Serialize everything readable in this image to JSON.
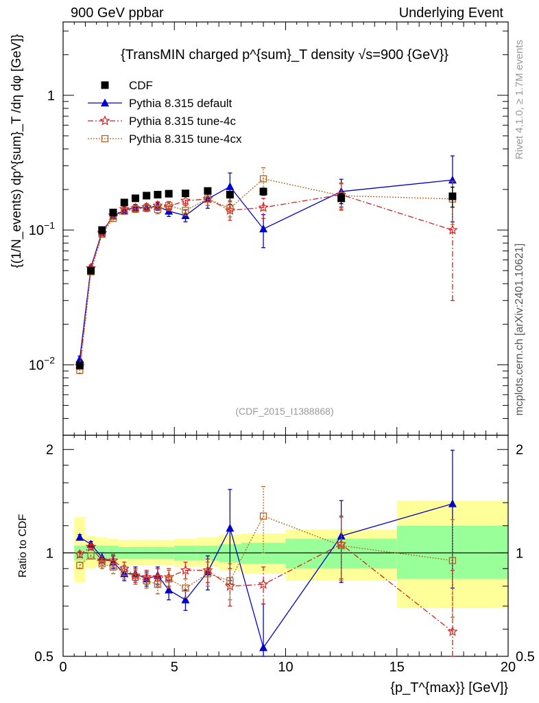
{
  "header": {
    "left": "900 GeV ppbar",
    "right": "Underlying Event"
  },
  "side_text": {
    "rivet": "Rivet 4.1.0, ≥ 1.7M events",
    "mcplots": "mcplots.cern.ch [arXiv:2401.10621]"
  },
  "chart_data": [
    {
      "type": "scatter",
      "panel": "main",
      "title": "{TransMIN charged p^{sum}_T density √s=900 {GeV}}",
      "watermark": "(CDF_2015_I1388868)",
      "ylabel": "{(1/N_events) dp^{sum}_T /dη  dφ [GeV]}",
      "yscale": "log",
      "xlim": [
        0,
        20
      ],
      "ylim": [
        0.003,
        3.5
      ],
      "yticks": [
        {
          "v": 0.01,
          "base": "10",
          "exp": "−2"
        },
        {
          "v": 0.1,
          "base": "10",
          "exp": "−1"
        },
        {
          "v": 1,
          "base": "1",
          "exp": ""
        }
      ],
      "legend": [
        {
          "label": "CDF",
          "color": "#000000",
          "marker": "square"
        },
        {
          "label": "Pythia 8.315 default",
          "color": "#0000cc",
          "marker": "triangle"
        },
        {
          "label": "Pythia 8.315 tune-4c",
          "color": "#d62020",
          "marker": "star"
        },
        {
          "label": "Pythia 8.315 tune-4cx",
          "color": "#b5601c",
          "marker": "opensquare"
        }
      ],
      "series": [
        {
          "name": "CDF",
          "x": [
            0.75,
            1.25,
            1.75,
            2.25,
            2.75,
            3.25,
            3.75,
            4.25,
            4.75,
            5.5,
            6.5,
            7.5,
            9.0,
            12.5,
            17.5
          ],
          "y": [
            0.0099,
            0.05,
            0.1,
            0.135,
            0.16,
            0.172,
            0.18,
            0.183,
            0.186,
            0.187,
            0.195,
            0.183,
            0.193,
            0.172,
            0.178
          ],
          "err": [
            0.0004,
            0.0015,
            0.003,
            0.004,
            0.004,
            0.005,
            0.005,
            0.006,
            0.006,
            0.007,
            0.008,
            0.009,
            0.012,
            0.015,
            0.03
          ]
        },
        {
          "name": "Pythia 8.315 default",
          "x": [
            0.75,
            1.25,
            1.75,
            2.25,
            2.75,
            3.25,
            3.75,
            4.25,
            4.75,
            5.5,
            6.5,
            7.5,
            9.0,
            12.5,
            17.5
          ],
          "y": [
            0.011,
            0.053,
            0.097,
            0.127,
            0.14,
            0.147,
            0.146,
            0.15,
            0.138,
            0.128,
            0.17,
            0.21,
            0.102,
            0.193,
            0.235
          ],
          "err": [
            0.0006,
            0.002,
            0.004,
            0.006,
            0.007,
            0.008,
            0.009,
            0.01,
            0.012,
            0.013,
            0.025,
            0.055,
            0.028,
            0.045,
            0.12
          ]
        },
        {
          "name": "Pythia 8.315 tune-4c",
          "x": [
            0.75,
            1.25,
            1.75,
            2.25,
            2.75,
            3.25,
            3.75,
            4.25,
            4.75,
            5.5,
            6.5,
            7.5,
            9.0,
            12.5,
            17.5
          ],
          "y": [
            0.0098,
            0.052,
            0.095,
            0.128,
            0.143,
            0.145,
            0.148,
            0.152,
            0.15,
            0.165,
            0.17,
            0.14,
            0.147,
            0.183,
            0.1
          ],
          "err": [
            0.0005,
            0.002,
            0.004,
            0.006,
            0.007,
            0.008,
            0.009,
            0.01,
            0.011,
            0.012,
            0.018,
            0.022,
            0.025,
            0.04,
            0.07
          ]
        },
        {
          "name": "Pythia 8.315 tune-4cx",
          "x": [
            0.75,
            1.25,
            1.75,
            2.25,
            2.75,
            3.25,
            3.75,
            4.25,
            4.75,
            5.5,
            6.5,
            7.5,
            9.0,
            12.5,
            17.5
          ],
          "y": [
            0.0091,
            0.049,
            0.093,
            0.122,
            0.138,
            0.143,
            0.146,
            0.142,
            0.152,
            0.14,
            0.17,
            0.145,
            0.24,
            0.18,
            0.17
          ],
          "err": [
            0.0005,
            0.002,
            0.004,
            0.006,
            0.007,
            0.008,
            0.009,
            0.01,
            0.011,
            0.012,
            0.018,
            0.02,
            0.05,
            0.04,
            0.06
          ]
        }
      ]
    },
    {
      "type": "scatter",
      "panel": "ratio",
      "ylabel": "Ratio to CDF",
      "xlabel": "{p_T^{max}} [GeV]}",
      "xlim": [
        0,
        20
      ],
      "ylim": [
        0.5,
        2.2
      ],
      "yscale": "log",
      "xticks": [
        0,
        5,
        10,
        15,
        20
      ],
      "yticks": [
        0.5,
        1,
        2
      ],
      "bands": [
        {
          "x0": 0.5,
          "x1": 1.0,
          "green": [
            0.95,
            1.05
          ],
          "yellow": [
            0.82,
            1.27
          ]
        },
        {
          "x0": 1.0,
          "x1": 1.5,
          "green": [
            0.96,
            1.06
          ],
          "yellow": [
            0.9,
            1.12
          ]
        },
        {
          "x0": 1.5,
          "x1": 2.0,
          "green": [
            0.96,
            1.05
          ],
          "yellow": [
            0.92,
            1.11
          ]
        },
        {
          "x0": 2.0,
          "x1": 2.5,
          "green": [
            0.96,
            1.05
          ],
          "yellow": [
            0.92,
            1.1
          ]
        },
        {
          "x0": 2.5,
          "x1": 3.0,
          "green": [
            0.96,
            1.04
          ],
          "yellow": [
            0.92,
            1.09
          ]
        },
        {
          "x0": 3.0,
          "x1": 3.5,
          "green": [
            0.96,
            1.04
          ],
          "yellow": [
            0.92,
            1.09
          ]
        },
        {
          "x0": 3.5,
          "x1": 4.0,
          "green": [
            0.96,
            1.04
          ],
          "yellow": [
            0.92,
            1.09
          ]
        },
        {
          "x0": 4.0,
          "x1": 4.5,
          "green": [
            0.96,
            1.04
          ],
          "yellow": [
            0.92,
            1.09
          ]
        },
        {
          "x0": 4.5,
          "x1": 5.0,
          "green": [
            0.96,
            1.04
          ],
          "yellow": [
            0.92,
            1.09
          ]
        },
        {
          "x0": 5.0,
          "x1": 6.0,
          "green": [
            0.95,
            1.05
          ],
          "yellow": [
            0.91,
            1.1
          ]
        },
        {
          "x0": 6.0,
          "x1": 7.0,
          "green": [
            0.95,
            1.05
          ],
          "yellow": [
            0.91,
            1.11
          ]
        },
        {
          "x0": 7.0,
          "x1": 8.0,
          "green": [
            0.94,
            1.06
          ],
          "yellow": [
            0.89,
            1.13
          ]
        },
        {
          "x0": 8.0,
          "x1": 10.0,
          "green": [
            0.93,
            1.07
          ],
          "yellow": [
            0.87,
            1.14
          ]
        },
        {
          "x0": 10.0,
          "x1": 15.0,
          "green": [
            0.9,
            1.1
          ],
          "yellow": [
            0.83,
            1.17
          ]
        },
        {
          "x0": 15.0,
          "x1": 20.0,
          "green": [
            0.84,
            1.2
          ],
          "yellow": [
            0.69,
            1.42
          ]
        }
      ],
      "series": [
        {
          "name": "Pythia 8.315 default",
          "x": [
            0.75,
            1.25,
            1.75,
            2.25,
            2.75,
            3.25,
            3.75,
            4.25,
            4.75,
            5.5,
            6.5,
            7.5,
            9.0,
            12.5,
            17.5
          ],
          "y": [
            1.11,
            1.06,
            0.97,
            0.94,
            0.87,
            0.87,
            0.84,
            0.86,
            0.78,
            0.73,
            0.88,
            1.18,
            0.53,
            1.12,
            1.39
          ],
          "err": [
            0.02,
            0.02,
            0.03,
            0.04,
            0.04,
            0.04,
            0.04,
            0.05,
            0.05,
            0.05,
            0.1,
            0.35,
            0.18,
            0.3,
            0.6
          ]
        },
        {
          "name": "Pythia 8.315 tune-4c",
          "x": [
            0.75,
            1.25,
            1.75,
            2.25,
            2.75,
            3.25,
            3.75,
            4.25,
            4.75,
            5.5,
            6.5,
            7.5,
            9.0,
            12.5,
            17.5
          ],
          "y": [
            0.99,
            1.04,
            0.95,
            0.95,
            0.9,
            0.86,
            0.85,
            0.85,
            0.85,
            0.89,
            0.89,
            0.8,
            0.81,
            1.06,
            0.59
          ],
          "err": [
            0.02,
            0.02,
            0.03,
            0.04,
            0.04,
            0.04,
            0.04,
            0.05,
            0.05,
            0.05,
            0.07,
            0.1,
            0.1,
            0.22,
            0.3
          ]
        },
        {
          "name": "Pythia 8.315 tune-4cx",
          "x": [
            0.75,
            1.25,
            1.75,
            2.25,
            2.75,
            3.25,
            3.75,
            4.25,
            4.75,
            5.5,
            6.5,
            7.5,
            9.0,
            12.5,
            17.5
          ],
          "y": [
            0.92,
            0.98,
            0.93,
            0.91,
            0.88,
            0.85,
            0.83,
            0.81,
            0.84,
            0.79,
            0.87,
            0.83,
            1.28,
            1.05,
            0.95
          ],
          "err": [
            0.02,
            0.02,
            0.03,
            0.04,
            0.04,
            0.04,
            0.04,
            0.05,
            0.05,
            0.05,
            0.07,
            0.1,
            0.28,
            0.22,
            0.3
          ]
        }
      ]
    }
  ]
}
